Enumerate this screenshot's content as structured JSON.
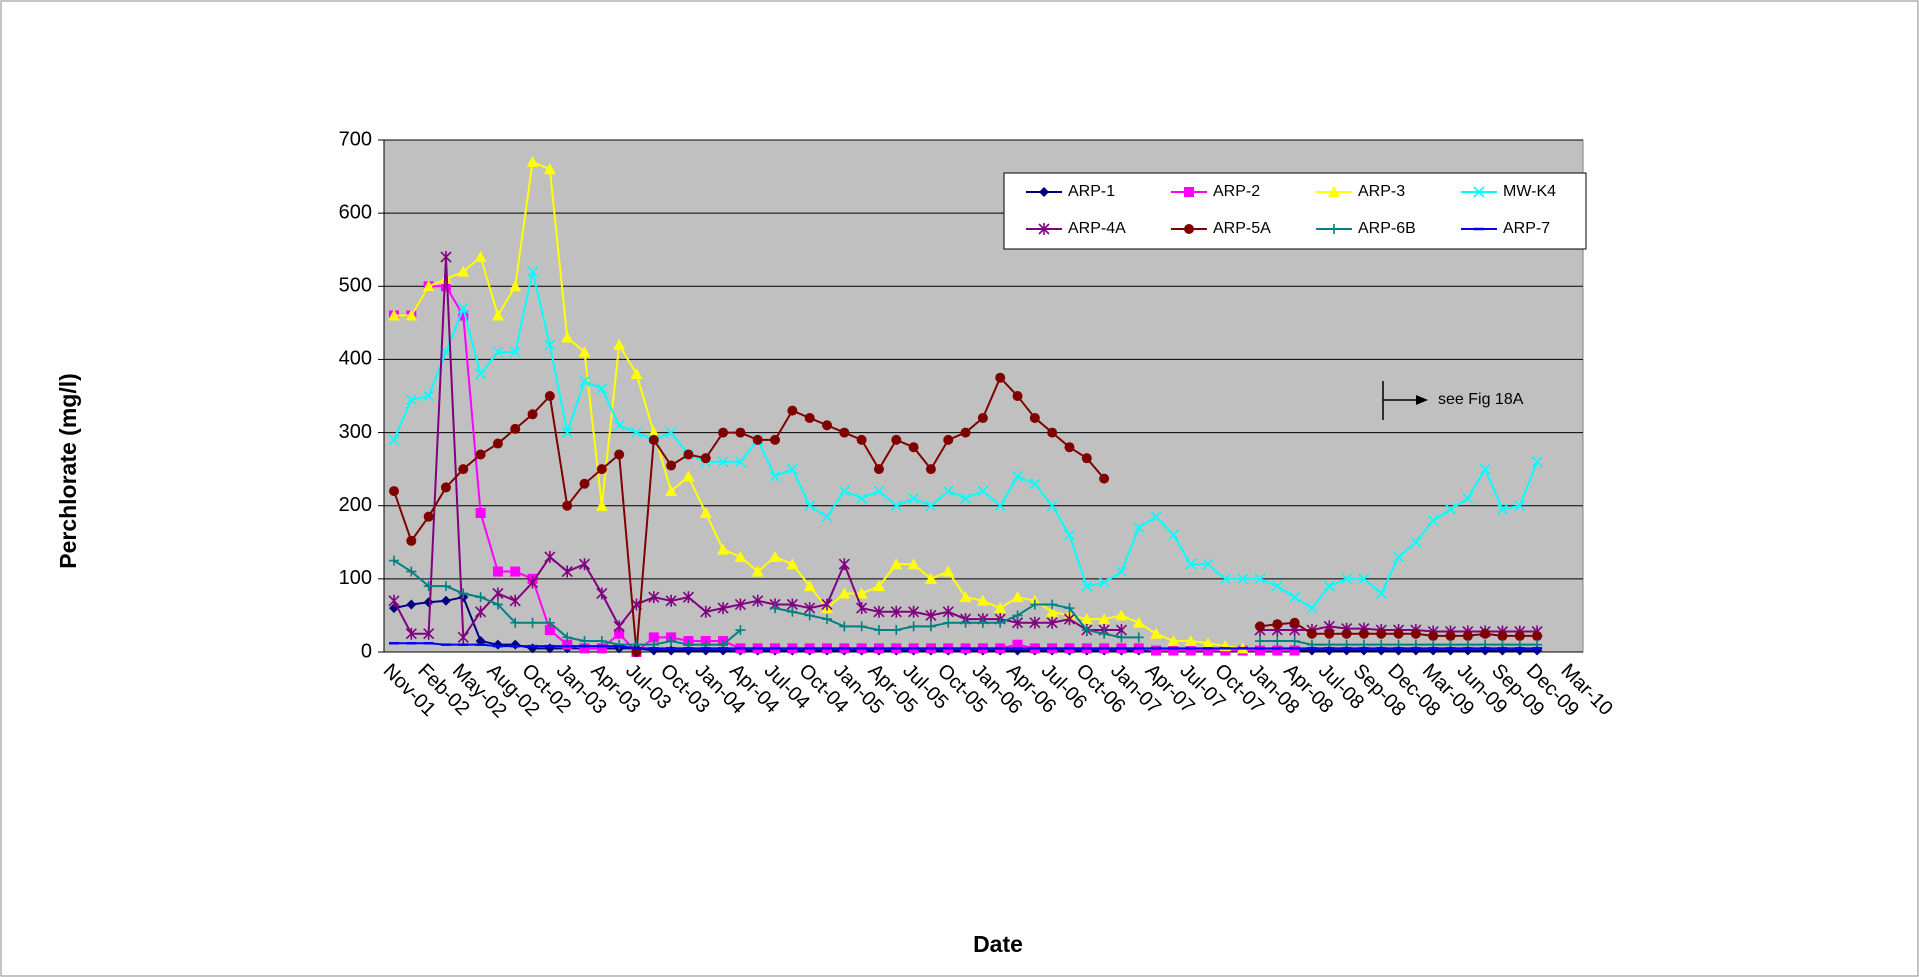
{
  "chart_data": {
    "type": "line",
    "y_label": "Perchlorate (mg/l)",
    "x_label": "Date",
    "annotation": "see Fig 18A",
    "ylim": [
      0,
      700
    ],
    "yticks": [
      0,
      100,
      200,
      300,
      400,
      500,
      600,
      700
    ],
    "grid": true,
    "legend": "top-right",
    "background": "#c0c0c0",
    "categories": [
      "Nov-01",
      null,
      "Feb-02",
      null,
      "May-02",
      null,
      "Aug-02",
      null,
      "Oct-02",
      null,
      "Jan-03",
      null,
      "Apr-03",
      null,
      "Jul-03",
      null,
      "Oct-03",
      null,
      "Jan-04",
      null,
      "Apr-04",
      null,
      "Jul-04",
      null,
      "Oct-04",
      null,
      "Jan-05",
      null,
      "Apr-05",
      null,
      "Jul-05",
      null,
      "Oct-05",
      null,
      "Jan-06",
      null,
      "Apr-06",
      null,
      "Jul-06",
      null,
      "Oct-06",
      null,
      "Jan-07",
      null,
      "Apr-07",
      null,
      "Jul-07",
      null,
      "Oct-07",
      null,
      "Jan-08",
      null,
      "Apr-08",
      null,
      "Jul-08",
      null,
      "Sep-08",
      null,
      "Dec-08",
      null,
      "Mar-09",
      null,
      "Jun-09",
      null,
      "Sep-09",
      null,
      "Dec-09",
      null,
      "Mar-10"
    ],
    "series": [
      {
        "name": "ARP-1",
        "color": "#000080",
        "marker": "diamond",
        "values": [
          60,
          65,
          68,
          70,
          75,
          15,
          10,
          10,
          5,
          5,
          5,
          5,
          5,
          5,
          5,
          2,
          2,
          2,
          2,
          2,
          2,
          2,
          2,
          2,
          2,
          2,
          2,
          2,
          2,
          2,
          2,
          2,
          2,
          2,
          2,
          2,
          2,
          2,
          2,
          2,
          2,
          2,
          2,
          2,
          2,
          2,
          2,
          2,
          2,
          2,
          2,
          2,
          2,
          2,
          2,
          2,
          2,
          2,
          2,
          2,
          2,
          2,
          2,
          2,
          2,
          2,
          2,
          null,
          null
        ]
      },
      {
        "name": "ARP-2",
        "color": "#ff00ff",
        "marker": "square",
        "values": [
          460,
          460,
          500,
          500,
          460,
          190,
          110,
          110,
          100,
          30,
          10,
          5,
          5,
          25,
          0,
          20,
          20,
          15,
          15,
          15,
          5,
          5,
          5,
          5,
          5,
          5,
          5,
          5,
          5,
          5,
          5,
          5,
          5,
          5,
          5,
          5,
          10,
          5,
          5,
          5,
          5,
          5,
          5,
          5,
          2,
          2,
          2,
          2,
          2,
          2,
          2,
          2,
          2,
          null,
          null,
          null,
          null,
          null,
          null,
          null,
          null,
          null,
          null,
          null,
          null,
          null,
          null,
          null,
          null
        ]
      },
      {
        "name": "ARP-3",
        "color": "#ffff00",
        "marker": "triangle",
        "values": [
          460,
          460,
          500,
          510,
          520,
          540,
          460,
          500,
          670,
          660,
          430,
          410,
          200,
          420,
          380,
          300,
          220,
          240,
          190,
          140,
          130,
          110,
          130,
          120,
          90,
          60,
          80,
          80,
          90,
          120,
          120,
          100,
          110,
          75,
          70,
          60,
          75,
          70,
          55,
          50,
          45,
          45,
          50,
          40,
          25,
          15,
          15,
          12,
          8,
          5,
          null,
          null,
          null,
          null,
          null,
          null,
          null,
          null,
          null,
          null,
          null,
          null,
          null,
          null,
          null,
          null,
          null,
          null,
          null
        ]
      },
      {
        "name": "MW-K4",
        "color": "#00ffff",
        "marker": "x",
        "values": [
          290,
          345,
          350,
          410,
          470,
          380,
          410,
          410,
          520,
          420,
          300,
          370,
          360,
          310,
          300,
          290,
          300,
          270,
          260,
          260,
          260,
          290,
          240,
          250,
          200,
          185,
          220,
          210,
          220,
          200,
          210,
          200,
          220,
          210,
          220,
          200,
          240,
          230,
          200,
          160,
          90,
          95,
          110,
          170,
          185,
          160,
          120,
          120,
          100,
          100,
          100,
          90,
          75,
          60,
          90,
          100,
          100,
          80,
          130,
          150,
          180,
          195,
          210,
          250,
          195,
          200,
          260,
          null,
          null
        ]
      },
      {
        "name": "ARP-4A",
        "color": "#800080",
        "marker": "star",
        "values": [
          70,
          25,
          25,
          540,
          20,
          55,
          80,
          70,
          95,
          130,
          110,
          120,
          80,
          35,
          65,
          75,
          70,
          75,
          55,
          60,
          65,
          70,
          65,
          65,
          60,
          65,
          120,
          60,
          55,
          55,
          55,
          50,
          55,
          45,
          45,
          45,
          40,
          40,
          40,
          45,
          30,
          30,
          30,
          null,
          null,
          null,
          null,
          null,
          null,
          null,
          30,
          30,
          30,
          30,
          35,
          32,
          32,
          30,
          30,
          30,
          28,
          28,
          28,
          28,
          28,
          28,
          28,
          null,
          null
        ]
      },
      {
        "name": "ARP-5A",
        "color": "#800000",
        "marker": "circle",
        "values": [
          220,
          152,
          185,
          225,
          250,
          270,
          285,
          305,
          325,
          350,
          200,
          230,
          250,
          270,
          0,
          290,
          255,
          270,
          265,
          300,
          300,
          290,
          290,
          330,
          320,
          310,
          300,
          290,
          250,
          290,
          280,
          250,
          290,
          300,
          320,
          375,
          350,
          320,
          300,
          280,
          265,
          237,
          null,
          null,
          null,
          null,
          null,
          null,
          null,
          null,
          35,
          38,
          40,
          25,
          25,
          25,
          25,
          25,
          25,
          25,
          22,
          22,
          22,
          25,
          22,
          22,
          22,
          null,
          null
        ]
      },
      {
        "name": "ARP-6B",
        "color": "#008080",
        "marker": "plus",
        "values": [
          125,
          110,
          90,
          90,
          80,
          75,
          65,
          40,
          40,
          40,
          20,
          15,
          15,
          10,
          10,
          10,
          15,
          10,
          10,
          10,
          30,
          null,
          60,
          55,
          50,
          45,
          35,
          35,
          30,
          30,
          35,
          35,
          40,
          40,
          40,
          40,
          50,
          65,
          65,
          60,
          30,
          25,
          20,
          20,
          null,
          null,
          null,
          null,
          null,
          null,
          15,
          15,
          15,
          10,
          10,
          10,
          10,
          10,
          10,
          10,
          10,
          10,
          10,
          10,
          10,
          10,
          10,
          null,
          null
        ]
      },
      {
        "name": "ARP-7",
        "color": "#0000ff",
        "marker": "dash",
        "values": [
          12,
          12,
          12,
          10,
          10,
          10,
          8,
          8,
          8,
          8,
          8,
          8,
          8,
          8,
          5,
          5,
          5,
          5,
          5,
          5,
          5,
          5,
          5,
          5,
          5,
          5,
          5,
          5,
          5,
          5,
          5,
          5,
          5,
          5,
          5,
          5,
          5,
          5,
          5,
          5,
          5,
          5,
          5,
          5,
          5,
          5,
          5,
          5,
          5,
          5,
          5,
          5,
          5,
          5,
          5,
          5,
          5,
          5,
          5,
          5,
          5,
          5,
          5,
          5,
          5,
          5,
          5,
          null,
          null
        ]
      }
    ]
  }
}
